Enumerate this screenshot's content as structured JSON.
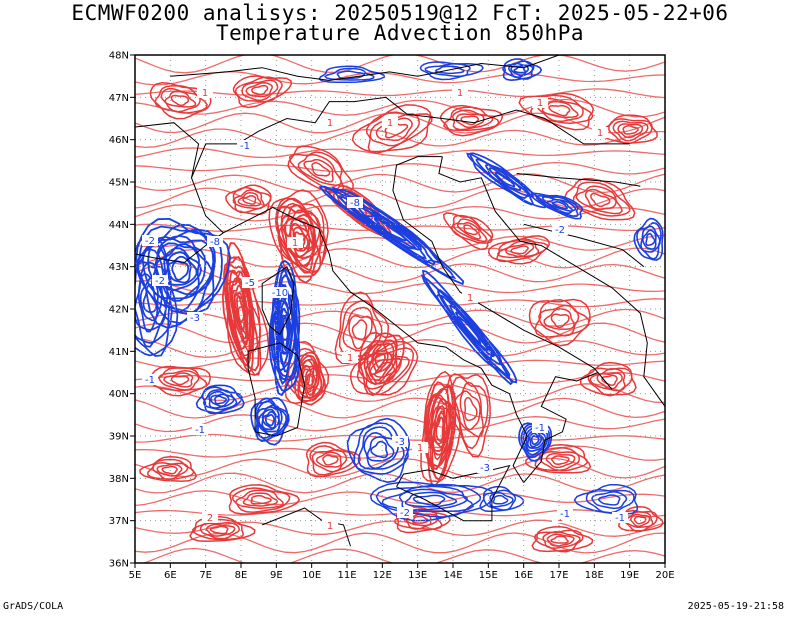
{
  "title": {
    "line1": "ECMWF0200 analisys: 20250519@12 FcT: 2025-05-22+06",
    "line2": "Temperature Advection 850hPa"
  },
  "footer": {
    "left": "GrADS/COLA",
    "right": "2025-05-19-21:58"
  },
  "map": {
    "lon_range": [
      5,
      20
    ],
    "lat_range": [
      36,
      48
    ],
    "lon_labels": [
      "5E",
      "6E",
      "7E",
      "8E",
      "9E",
      "10E",
      "11E",
      "12E",
      "13E",
      "14E",
      "15E",
      "16E",
      "17E",
      "18E",
      "19E",
      "20E"
    ],
    "lat_labels": [
      "36N",
      "37N",
      "38N",
      "39N",
      "40N",
      "41N",
      "42N",
      "43N",
      "44N",
      "45N",
      "46N",
      "47N",
      "48N"
    ],
    "grid": "dotted",
    "colors": {
      "warm": "#e8393a",
      "cold": "#1c3fe0",
      "coast": "#000000",
      "grid": "#9a9a9a"
    }
  },
  "contour_labels": {
    "warm": [
      "1",
      "1",
      "1",
      "1",
      "1",
      "1",
      "2",
      "1",
      "1",
      "1",
      "2",
      "1",
      "1",
      "1"
    ],
    "cold": [
      "-1",
      "-2",
      "-3",
      "-8",
      "-2",
      "-5",
      "-10",
      "-3",
      "-1",
      "-1",
      "-2",
      "-1",
      "-3",
      "-2",
      "-1",
      "-1",
      "-8"
    ]
  }
}
